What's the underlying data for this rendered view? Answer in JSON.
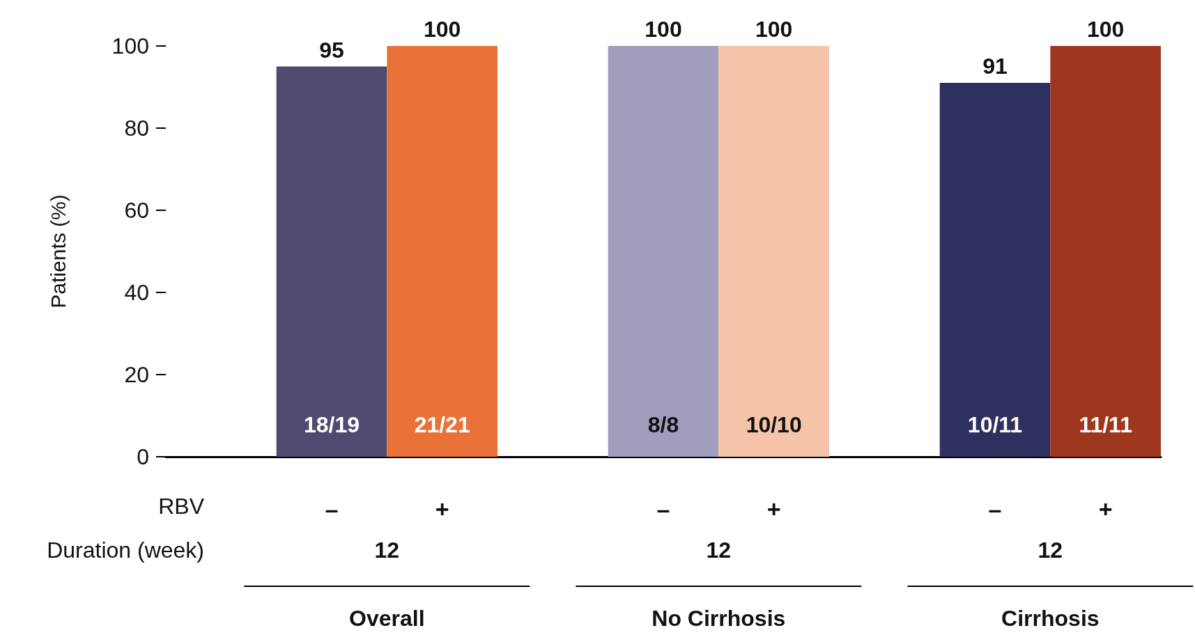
{
  "chart_data": {
    "type": "bar",
    "ylabel": "Patients (%)",
    "categories": [
      null,
      "–",
      "+",
      null,
      "–",
      "+",
      null,
      "–",
      "+"
    ],
    "values": [
      null,
      95,
      100,
      null,
      100,
      100,
      null,
      91,
      100
    ],
    "colors": [
      "#ffffff",
      "#4f4a70",
      "#ea7239",
      "#ffffff",
      "#a09dbd",
      "#f5c3a8",
      "#ffffff",
      "#2e3060",
      "#9e371e"
    ],
    "ylim": [
      0,
      100
    ],
    "yticks": [
      0,
      20,
      40,
      60,
      80,
      100
    ],
    "grid": false,
    "data_labels": true,
    "annotations": [
      "18/19",
      "21/21",
      "8/8",
      "10/10",
      "10/11",
      "11/11",
      "RBV",
      "Duration (week)",
      "12",
      "12",
      "12",
      "Overall",
      "No Cirrhosis",
      "Cirrhosis"
    ]
  }
}
